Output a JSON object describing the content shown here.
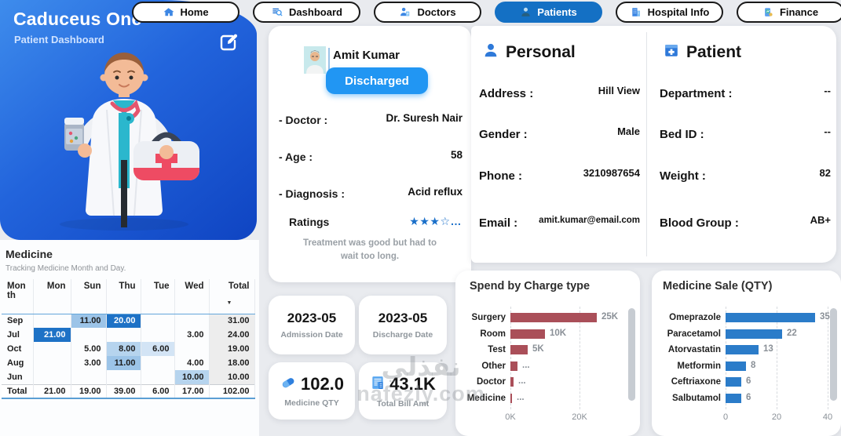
{
  "brand": {
    "title": "Caduceus One",
    "subtitle": "Patient Dashboard"
  },
  "nav": {
    "items": [
      {
        "label": "Home",
        "icon": "home-icon",
        "active": false
      },
      {
        "label": "Dashboard",
        "icon": "dashboard-icon",
        "active": false
      },
      {
        "label": "Doctors",
        "icon": "doctors-icon",
        "active": false
      },
      {
        "label": "Patients",
        "icon": "patients-icon",
        "active": true
      },
      {
        "label": "Hospital Info",
        "icon": "hospital-icon",
        "active": false
      },
      {
        "label": "Finance",
        "icon": "finance-icon",
        "active": false
      }
    ]
  },
  "patient_summary": {
    "name": "Amit Kumar",
    "status": "Discharged",
    "fields": [
      {
        "label": "- Doctor :",
        "value": "Dr. Suresh Nair"
      },
      {
        "label": "- Age :",
        "value": "58"
      },
      {
        "label": "- Diagnosis :",
        "value": "Acid reflux"
      }
    ],
    "ratings_label": "Ratings",
    "ratings_stars": "★★★☆…",
    "review": "Treatment was good but had to wait too long."
  },
  "personal": {
    "title": "Personal",
    "icon": "person-icon",
    "rows": [
      {
        "label": "Address :",
        "value": "Hill View"
      },
      {
        "label": "Gender :",
        "value": "Male"
      },
      {
        "label": "Phone :",
        "value": "3210987654"
      },
      {
        "label": "Email :",
        "value": "amit.kumar@email.com"
      }
    ]
  },
  "patient_info": {
    "title": "Patient",
    "icon": "medical-file-icon",
    "rows": [
      {
        "label": "Department :",
        "value": "--"
      },
      {
        "label": "Bed ID :",
        "value": "--"
      },
      {
        "label": "Weight :",
        "value": "82"
      },
      {
        "label": "Blood Group :",
        "value": "AB+"
      }
    ]
  },
  "cards": {
    "admission": {
      "value": "2023-05",
      "label": "Admission Date"
    },
    "discharge": {
      "value": "2023-05",
      "label": "Discharge Date"
    },
    "medicine_qty": {
      "value": "102.0",
      "label": "Medicine QTY",
      "icon": "pill-icon"
    },
    "total_bill": {
      "value": "43.1K",
      "label": "Total Bill Amt",
      "icon": "bill-icon"
    }
  },
  "chart_data": [
    {
      "type": "table",
      "title": "Medicine",
      "subtitle": "Tracking Medicine Month and Day.",
      "columns": [
        "Month",
        "Mon",
        "Sun",
        "Thu",
        "Tue",
        "Wed",
        "Total"
      ],
      "sort": {
        "column": "Total",
        "direction": "desc"
      },
      "rows": [
        {
          "label": "Sep",
          "cells": [
            {
              "v": ""
            },
            {
              "v": "11.00",
              "h": "m1"
            },
            {
              "v": "20.00",
              "h": "d"
            },
            {
              "v": ""
            },
            {
              "v": ""
            }
          ],
          "total": "31.00"
        },
        {
          "label": "Jul",
          "cells": [
            {
              "v": "21.00",
              "h": "d"
            },
            {
              "v": ""
            },
            {
              "v": ""
            },
            {
              "v": ""
            },
            {
              "v": "3.00"
            }
          ],
          "total": "24.00"
        },
        {
          "label": "Oct",
          "cells": [
            {
              "v": ""
            },
            {
              "v": "5.00"
            },
            {
              "v": "8.00",
              "h": "m2"
            },
            {
              "v": "6.00",
              "h": "m3"
            },
            {
              "v": ""
            }
          ],
          "total": "19.00"
        },
        {
          "label": "Aug",
          "cells": [
            {
              "v": ""
            },
            {
              "v": "3.00"
            },
            {
              "v": "11.00",
              "h": "m1"
            },
            {
              "v": ""
            },
            {
              "v": "4.00"
            }
          ],
          "total": "18.00"
        },
        {
          "label": "Jun",
          "cells": [
            {
              "v": ""
            },
            {
              "v": ""
            },
            {
              "v": ""
            },
            {
              "v": ""
            },
            {
              "v": "10.00",
              "h": "m2"
            }
          ],
          "total": "10.00"
        }
      ],
      "footer": {
        "label": "Total",
        "cells": [
          "21.00",
          "19.00",
          "39.00",
          "6.00",
          "17.00"
        ],
        "total": "102.00"
      }
    },
    {
      "type": "bar",
      "orientation": "horizontal",
      "title": "Spend by Charge type",
      "categories": [
        "Surgery",
        "Room",
        "Test",
        "Other",
        "Doctor",
        "Medicine"
      ],
      "values": [
        25000,
        10000,
        5000,
        2000,
        1000,
        500
      ],
      "value_labels": [
        "25K",
        "10K",
        "5K",
        "...",
        "...",
        "..."
      ],
      "x_ticks": [
        {
          "label": "0K",
          "value": 0
        },
        {
          "label": "20K",
          "value": 20000
        }
      ],
      "xlim": [
        0,
        34000
      ],
      "bar_color": "#aa4f59",
      "grid": "dashed"
    },
    {
      "type": "bar",
      "orientation": "horizontal",
      "title": "Medicine Sale (QTY)",
      "categories": [
        "Omeprazole",
        "Paracetamol",
        "Atorvastatin",
        "Metformin",
        "Ceftriaxone",
        "Salbutamol"
      ],
      "values": [
        35,
        22,
        13,
        8,
        6,
        6
      ],
      "value_labels": [
        "35",
        "22",
        "13",
        "8",
        "6",
        "6"
      ],
      "x_ticks": [
        {
          "label": "0",
          "value": 0
        },
        {
          "label": "20",
          "value": 20
        },
        {
          "label": "40",
          "value": 40
        }
      ],
      "xlim": [
        0,
        42
      ],
      "bar_color": "#2b7cc9",
      "grid": "dashed"
    }
  ],
  "watermark": {
    "line1": "نفذلي",
    "line2": "nafezly.com"
  },
  "colors": {
    "accent_blue": "#1470c4",
    "status_blue": "#2196f3",
    "panel_blue_start": "#3e8cec",
    "panel_blue_end": "#0f44c2",
    "bar_red": "#aa4f59",
    "bar_blue": "#2b7cc9",
    "table_highlight_dark": "#1e72c6",
    "star_blue": "#1a6fc9"
  }
}
